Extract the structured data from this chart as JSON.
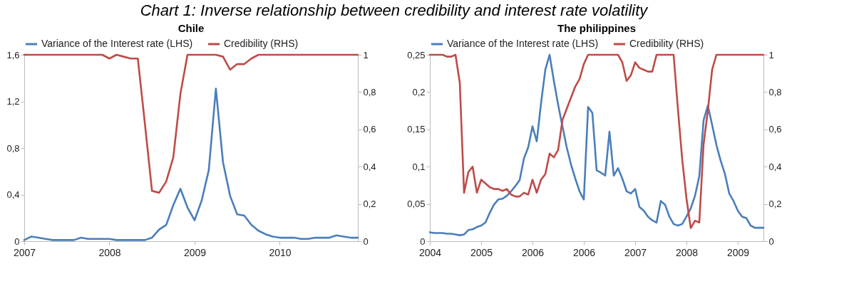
{
  "chart_data": [
    {
      "type": "line",
      "title": "Chile",
      "annotations": [
        "Chart 1: Inverse relationship between credibility and interest rate volatility"
      ],
      "legend": "top",
      "categories": [
        "2007",
        null,
        null,
        null,
        null,
        null,
        null,
        null,
        null,
        null,
        null,
        null,
        "2008",
        null,
        null,
        null,
        null,
        null,
        null,
        null,
        null,
        null,
        null,
        null,
        "2009",
        null,
        null,
        null,
        null,
        null,
        null,
        null,
        null,
        null,
        null,
        null,
        "2010",
        null,
        null,
        null,
        null,
        null,
        null,
        null,
        null,
        null,
        null,
        null
      ],
      "series": [
        {
          "name": "Variance of the Interest rate (LHS)",
          "color": "#4a7ebb",
          "values": [
            0.01,
            0.04,
            0.03,
            0.02,
            0.01,
            0.01,
            0.01,
            0.01,
            0.03,
            0.02,
            0.02,
            0.02,
            0.02,
            0.01,
            0.01,
            0.01,
            0.01,
            0.01,
            0.03,
            0.1,
            0.14,
            0.31,
            0.45,
            0.29,
            0.18,
            0.35,
            0.61,
            1.31,
            0.68,
            0.39,
            0.23,
            0.22,
            0.14,
            0.09,
            0.06,
            0.04,
            0.03,
            0.03,
            0.03,
            0.02,
            0.02,
            0.03,
            0.03,
            0.03,
            0.05,
            0.04,
            0.03,
            0.03
          ]
        },
        {
          "name": "Credibility (RHS)",
          "color": "#be4b48",
          "axis": "y2",
          "values": [
            1,
            1,
            1,
            1,
            1,
            1,
            1,
            1,
            1,
            1,
            1,
            1,
            0.98,
            1,
            0.99,
            0.98,
            0.98,
            0.63,
            0.27,
            0.26,
            0.32,
            0.45,
            0.79,
            1,
            1,
            1,
            1,
            1,
            0.99,
            0.92,
            0.95,
            0.95,
            0.98,
            1,
            1,
            1,
            1,
            1,
            1,
            1,
            1,
            1,
            1,
            1,
            1,
            1,
            1,
            1
          ]
        }
      ],
      "ylim": [
        0,
        1.6
      ],
      "yticks": [
        0,
        {
          "value": 0.4,
          "label": "0,4"
        },
        {
          "value": 0.8,
          "label": "0,8"
        },
        {
          "value": 1.2,
          "label": "1,2"
        },
        {
          "value": 1.6,
          "label": "1,6"
        }
      ],
      "y2lim": [
        0,
        1
      ],
      "y2ticks": [
        {
          "value": 0,
          "label": "0"
        },
        {
          "value": 0.2,
          "label": "0,2"
        },
        {
          "value": 0.4,
          "label": "0,4"
        },
        {
          "value": 0.6,
          "label": "0,6"
        },
        {
          "value": 0.8,
          "label": "0,8"
        },
        {
          "value": 1,
          "label": "1"
        }
      ]
    },
    {
      "type": "line",
      "title": "The philippines",
      "legend": "top",
      "categories": [
        "2004",
        null,
        null,
        null,
        null,
        null,
        null,
        null,
        null,
        null,
        null,
        null,
        "2005",
        null,
        null,
        null,
        null,
        null,
        null,
        null,
        null,
        null,
        null,
        null,
        "2006",
        null,
        null,
        null,
        null,
        null,
        null,
        null,
        null,
        null,
        null,
        null,
        "2006",
        null,
        null,
        null,
        null,
        null,
        null,
        null,
        null,
        null,
        null,
        null,
        "2007",
        null,
        null,
        null,
        null,
        null,
        null,
        null,
        null,
        null,
        null,
        null,
        "2008",
        null,
        null,
        null,
        null,
        null,
        null,
        null,
        null,
        null,
        null,
        null,
        "2009",
        null,
        null,
        null,
        null,
        null,
        null
      ],
      "series": [
        {
          "name": "Variance of the Interest rate (LHS)",
          "color": "#4a7ebb",
          "values": [
            0.012,
            0.011,
            0.011,
            0.011,
            0.01,
            0.01,
            0.009,
            0.008,
            0.009,
            0.015,
            0.016,
            0.019,
            0.021,
            0.025,
            0.038,
            0.049,
            0.056,
            0.057,
            0.061,
            0.067,
            0.074,
            0.082,
            0.111,
            0.126,
            0.154,
            0.134,
            0.185,
            0.23,
            0.25,
            0.215,
            0.183,
            0.154,
            0.126,
            0.103,
            0.084,
            0.067,
            0.056,
            0.18,
            0.172,
            0.095,
            0.092,
            0.088,
            0.147,
            0.088,
            0.098,
            0.084,
            0.067,
            0.064,
            0.07,
            0.046,
            0.041,
            0.033,
            0.028,
            0.025,
            0.054,
            0.049,
            0.033,
            0.023,
            0.021,
            0.023,
            0.033,
            0.044,
            0.061,
            0.087,
            0.162,
            0.182,
            0.156,
            0.129,
            0.108,
            0.09,
            0.064,
            0.054,
            0.041,
            0.033,
            0.031,
            0.021,
            0.018,
            0.018,
            0.018
          ]
        },
        {
          "name": "Credibility (RHS)",
          "color": "#be4b48",
          "axis": "y2",
          "values": [
            1,
            1,
            1,
            1,
            0.99,
            0.99,
            1,
            0.85,
            0.26,
            0.37,
            0.4,
            0.26,
            0.33,
            0.31,
            0.29,
            0.28,
            0.28,
            0.27,
            0.28,
            0.25,
            0.24,
            0.24,
            0.26,
            0.25,
            0.33,
            0.26,
            0.33,
            0.36,
            0.47,
            0.45,
            0.49,
            0.65,
            0.71,
            0.77,
            0.83,
            0.87,
            0.95,
            1,
            1,
            1,
            1,
            1,
            1,
            1,
            1,
            0.96,
            0.86,
            0.89,
            0.96,
            0.93,
            0.92,
            0.91,
            0.91,
            1,
            1,
            1,
            1,
            1,
            0.71,
            0.44,
            0.23,
            0.07,
            0.11,
            0.1,
            0.52,
            0.7,
            0.92,
            1,
            1,
            1,
            1,
            1,
            1,
            1,
            1,
            1,
            1,
            1,
            1
          ]
        }
      ],
      "ylim": [
        0,
        0.25
      ],
      "yticks": [
        0,
        {
          "value": 0.05,
          "label": "0,05"
        },
        {
          "value": 0.1,
          "label": "0,1"
        },
        {
          "value": 0.15,
          "label": "0,15"
        },
        {
          "value": 0.2,
          "label": "0,2"
        },
        {
          "value": 0.25,
          "label": "0,25"
        }
      ],
      "y2lim": [
        0,
        1
      ],
      "y2ticks": [
        {
          "value": 0,
          "label": "0"
        },
        {
          "value": 0.2,
          "label": "0,2"
        },
        {
          "value": 0.4,
          "label": "0,4"
        },
        {
          "value": 0.6,
          "label": "0,6"
        },
        {
          "value": 0.8,
          "label": "0,8"
        },
        {
          "value": 1,
          "label": "1"
        }
      ]
    }
  ]
}
